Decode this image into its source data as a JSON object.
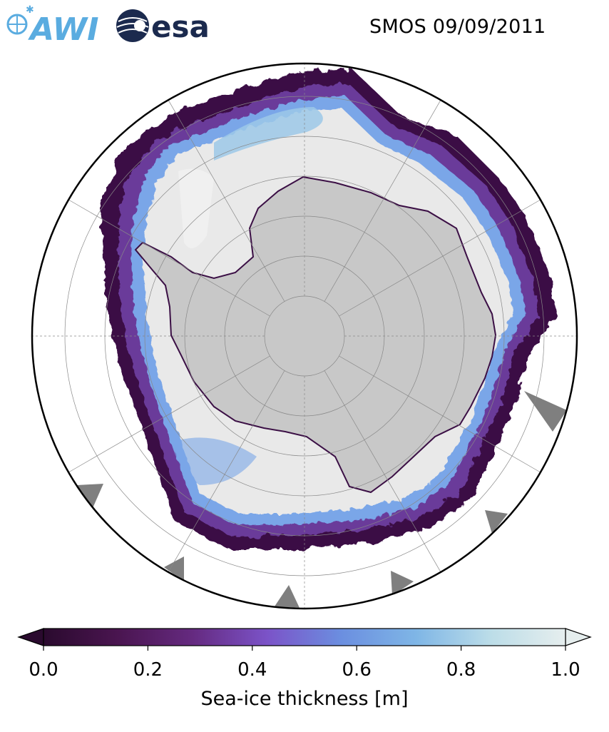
{
  "title": "SMOS 09/09/2011",
  "logos": {
    "awi": {
      "text": "AWI",
      "color": "#5aace0"
    },
    "esa": {
      "text": "esa",
      "color": "#1b2a4e"
    }
  },
  "map": {
    "projection": "south-polar-stereographic",
    "land_color": "#c8c8c8",
    "open_water_color": "#ffffff",
    "thick_ice_color": "#e9e9e9",
    "missing_data_color": "#7f7f7f",
    "graticule_color": "#888888"
  },
  "colorbar": {
    "label": "Sea-ice thickness [m]",
    "min": 0.0,
    "max": 1.0,
    "ticks": [
      "0.0",
      "0.2",
      "0.4",
      "0.6",
      "0.8",
      "1.0"
    ],
    "extend": "both",
    "colors": [
      "#2a0a2e",
      "#4a1550",
      "#652a80",
      "#7b53c8",
      "#6b8fe0",
      "#7fb6e6",
      "#bcdde8",
      "#e6eeee"
    ]
  }
}
